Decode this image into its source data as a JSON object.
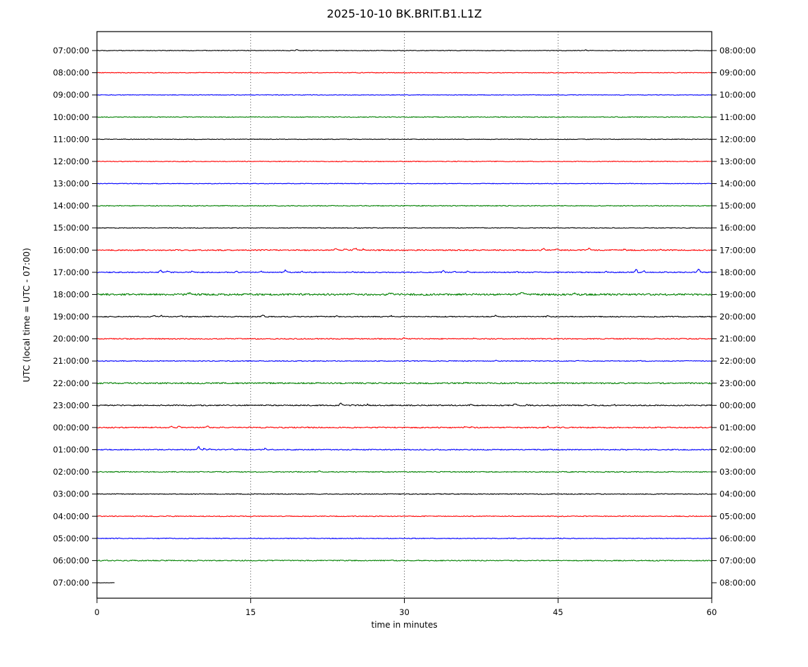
{
  "chart_data": {
    "type": "line",
    "variant": "helicorder_dayplot",
    "title": "2025-10-10 BK.BRIT.B1.L1Z",
    "xlabel": "time in minutes",
    "ylabel": "UTC (local time = UTC - 07:00)",
    "xlim": [
      0,
      60
    ],
    "x_ticks": [
      0,
      15,
      30,
      45,
      60
    ],
    "x_gridlines": [
      15,
      30,
      45
    ],
    "grid_style": "dotted",
    "minutes_per_line": 60,
    "trace_color_cycle": [
      "#000000",
      "#ff0000",
      "#0000ff",
      "#008000"
    ],
    "traces": [
      {
        "left_label": "07:00:00",
        "right_label": "08:00:00",
        "color": "#000000",
        "noise": 0.45,
        "extent": [
          0,
          60
        ],
        "events": [
          [
            19.5,
            2.5,
            0.15
          ],
          [
            47.7,
            1.8,
            0.15
          ]
        ]
      },
      {
        "left_label": "08:00:00",
        "right_label": "09:00:00",
        "color": "#ff0000",
        "noise": 0.5,
        "extent": [
          0,
          60
        ],
        "events": []
      },
      {
        "left_label": "09:00:00",
        "right_label": "10:00:00",
        "color": "#0000ff",
        "noise": 0.45,
        "extent": [
          0,
          60
        ],
        "events": []
      },
      {
        "left_label": "10:00:00",
        "right_label": "11:00:00",
        "color": "#008000",
        "noise": 0.6,
        "extent": [
          0,
          60
        ],
        "events": []
      },
      {
        "left_label": "11:00:00",
        "right_label": "12:00:00",
        "color": "#000000",
        "noise": 0.45,
        "extent": [
          0,
          60
        ],
        "events": []
      },
      {
        "left_label": "12:00:00",
        "right_label": "13:00:00",
        "color": "#ff0000",
        "noise": 0.5,
        "extent": [
          0,
          60
        ],
        "events": []
      },
      {
        "left_label": "13:00:00",
        "right_label": "14:00:00",
        "color": "#0000ff",
        "noise": 0.45,
        "extent": [
          0,
          60
        ],
        "events": []
      },
      {
        "left_label": "14:00:00",
        "right_label": "15:00:00",
        "color": "#008000",
        "noise": 0.6,
        "extent": [
          0,
          60
        ],
        "events": []
      },
      {
        "left_label": "15:00:00",
        "right_label": "16:00:00",
        "color": "#000000",
        "noise": 0.5,
        "extent": [
          0,
          60
        ],
        "events": []
      },
      {
        "left_label": "16:00:00",
        "right_label": "17:00:00",
        "color": "#ff0000",
        "noise": 0.8,
        "extent": [
          0,
          60
        ],
        "events": [
          [
            23.3,
            3,
            0.3
          ],
          [
            24.2,
            2.5,
            0.25
          ],
          [
            25.2,
            3.5,
            0.3
          ],
          [
            26,
            2,
            0.2
          ],
          [
            43.6,
            2.5,
            0.25
          ],
          [
            44.9,
            3,
            0.3
          ],
          [
            48,
            3.5,
            0.25
          ],
          [
            51.5,
            1.5,
            0.2
          ],
          [
            55,
            1.5,
            0.2
          ]
        ]
      },
      {
        "left_label": "17:00:00",
        "right_label": "18:00:00",
        "color": "#0000ff",
        "noise": 0.7,
        "extent": [
          0,
          60
        ],
        "events": [
          [
            6.2,
            5,
            0.2
          ],
          [
            6.9,
            3,
            0.2
          ],
          [
            9.3,
            3.5,
            0.15
          ],
          [
            13.6,
            2.5,
            0.15
          ],
          [
            16.1,
            2,
            0.15
          ],
          [
            18.4,
            4,
            0.2
          ],
          [
            20,
            2.5,
            0.15
          ],
          [
            25,
            1.5,
            0.15
          ],
          [
            33.8,
            5,
            0.2
          ],
          [
            34.9,
            2.5,
            0.15
          ],
          [
            36.2,
            2,
            0.15
          ],
          [
            41,
            1.5,
            0.15
          ],
          [
            49.7,
            2,
            0.15
          ],
          [
            52.6,
            7,
            0.2
          ],
          [
            53.4,
            3,
            0.15
          ],
          [
            55.5,
            1.5,
            0.15
          ],
          [
            58.7,
            8,
            0.2
          ]
        ]
      },
      {
        "left_label": "18:00:00",
        "right_label": "19:00:00",
        "color": "#008000",
        "noise": 1.3,
        "extent": [
          0,
          60
        ],
        "events": [
          [
            9,
            2.5,
            0.4
          ],
          [
            28.7,
            2,
            0.4
          ],
          [
            41.5,
            2.5,
            0.5
          ],
          [
            46.6,
            2.5,
            0.4
          ]
        ]
      },
      {
        "left_label": "19:00:00",
        "right_label": "20:00:00",
        "color": "#000000",
        "noise": 0.7,
        "extent": [
          0,
          60
        ],
        "events": [
          [
            5.6,
            2.5,
            0.2
          ],
          [
            6.3,
            2,
            0.2
          ],
          [
            8.2,
            2,
            0.2
          ],
          [
            11.2,
            1.5,
            0.15
          ],
          [
            16.2,
            3.5,
            0.2
          ],
          [
            23.4,
            1.5,
            0.15
          ],
          [
            28.7,
            1.5,
            0.15
          ],
          [
            38.9,
            2,
            0.2
          ],
          [
            44,
            1.5,
            0.15
          ]
        ]
      },
      {
        "left_label": "20:00:00",
        "right_label": "21:00:00",
        "color": "#ff0000",
        "noise": 0.7,
        "extent": [
          0,
          60
        ],
        "events": [
          [
            30,
            1.8,
            0.2
          ],
          [
            36.8,
            1.5,
            0.15
          ]
        ]
      },
      {
        "left_label": "21:00:00",
        "right_label": "22:00:00",
        "color": "#0000ff",
        "noise": 0.6,
        "extent": [
          0,
          60
        ],
        "events": [
          [
            39,
            1.5,
            0.2
          ],
          [
            47,
            1.2,
            0.15
          ],
          [
            53,
            1.5,
            0.15
          ]
        ]
      },
      {
        "left_label": "22:00:00",
        "right_label": "23:00:00",
        "color": "#008000",
        "noise": 1.0,
        "extent": [
          0,
          60
        ],
        "events": [
          [
            36,
            1.5,
            0.3
          ],
          [
            41,
            1.5,
            0.3
          ]
        ]
      },
      {
        "left_label": "23:00:00",
        "right_label": "00:00:00",
        "color": "#000000",
        "noise": 0.8,
        "extent": [
          0,
          60
        ],
        "events": [
          [
            23.8,
            5,
            0.2
          ],
          [
            24.9,
            2.5,
            0.15
          ],
          [
            26.4,
            1.8,
            0.15
          ],
          [
            36.5,
            2,
            0.2
          ],
          [
            40.8,
            2.5,
            0.25
          ],
          [
            42,
            1.5,
            0.15
          ],
          [
            50.5,
            1.5,
            0.15
          ]
        ]
      },
      {
        "left_label": "00:00:00",
        "right_label": "01:00:00",
        "color": "#ff0000",
        "noise": 0.8,
        "extent": [
          0,
          60
        ],
        "events": [
          [
            7.3,
            2.5,
            0.2
          ],
          [
            8,
            2.5,
            0.2
          ],
          [
            10.8,
            2.5,
            0.2
          ],
          [
            13.5,
            1.5,
            0.15
          ],
          [
            20.5,
            1.5,
            0.15
          ],
          [
            35.9,
            2,
            0.2
          ],
          [
            36.6,
            1.8,
            0.15
          ],
          [
            44,
            1.5,
            0.15
          ]
        ]
      },
      {
        "left_label": "01:00:00",
        "right_label": "02:00:00",
        "color": "#0000ff",
        "noise": 0.7,
        "extent": [
          0,
          60
        ],
        "events": [
          [
            9.9,
            5.5,
            0.2
          ],
          [
            10.5,
            3,
            0.2
          ],
          [
            11,
            2,
            0.15
          ],
          [
            13.2,
            1.5,
            0.15
          ],
          [
            16.4,
            2.5,
            0.2
          ]
        ]
      },
      {
        "left_label": "02:00:00",
        "right_label": "03:00:00",
        "color": "#008000",
        "noise": 0.7,
        "extent": [
          0,
          60
        ],
        "events": [
          [
            21.7,
            2.8,
            0.15
          ]
        ]
      },
      {
        "left_label": "03:00:00",
        "right_label": "04:00:00",
        "color": "#000000",
        "noise": 0.6,
        "extent": [
          0,
          60
        ],
        "events": []
      },
      {
        "left_label": "04:00:00",
        "right_label": "05:00:00",
        "color": "#ff0000",
        "noise": 0.55,
        "extent": [
          0,
          60
        ],
        "events": []
      },
      {
        "left_label": "05:00:00",
        "right_label": "06:00:00",
        "color": "#0000ff",
        "noise": 0.55,
        "extent": [
          0,
          60
        ],
        "events": []
      },
      {
        "left_label": "06:00:00",
        "right_label": "07:00:00",
        "color": "#008000",
        "noise": 0.7,
        "extent": [
          0,
          60
        ],
        "events": []
      },
      {
        "left_label": "07:00:00",
        "right_label": "08:00:00",
        "color": "#000000",
        "noise": 0.25,
        "extent": [
          0,
          1.7
        ],
        "events": []
      }
    ]
  }
}
